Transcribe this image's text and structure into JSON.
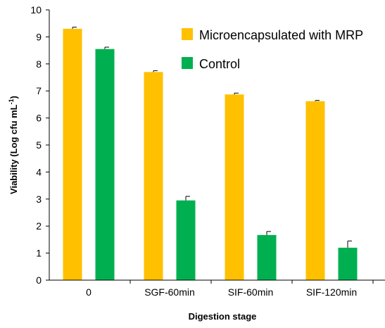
{
  "chart_data": {
    "type": "bar",
    "categories": [
      "0",
      "SGF-60min",
      "SIF-60min",
      "SIF-120min"
    ],
    "series": [
      {
        "name": "Microencapsulated with MRP",
        "color": "#FFC000",
        "values": [
          9.3,
          7.7,
          6.87,
          6.62
        ],
        "errors": [
          0.06,
          0.05,
          0.05,
          0.03
        ]
      },
      {
        "name": "Control",
        "color": "#00B050",
        "values": [
          8.55,
          2.95,
          1.67,
          1.2
        ],
        "errors": [
          0.07,
          0.15,
          0.13,
          0.25
        ]
      }
    ],
    "xlabel": "Digestion stage",
    "ylabel_main": "Viability (Log cfu mL",
    "ylabel_sup": "-1",
    "ylabel_end": ")",
    "ylim": [
      0,
      10
    ],
    "yticks": [
      "0",
      "1",
      "2",
      "3",
      "4",
      "5",
      "6",
      "7",
      "8",
      "9",
      "10"
    ],
    "legend_position": "top-right",
    "grid": false
  }
}
